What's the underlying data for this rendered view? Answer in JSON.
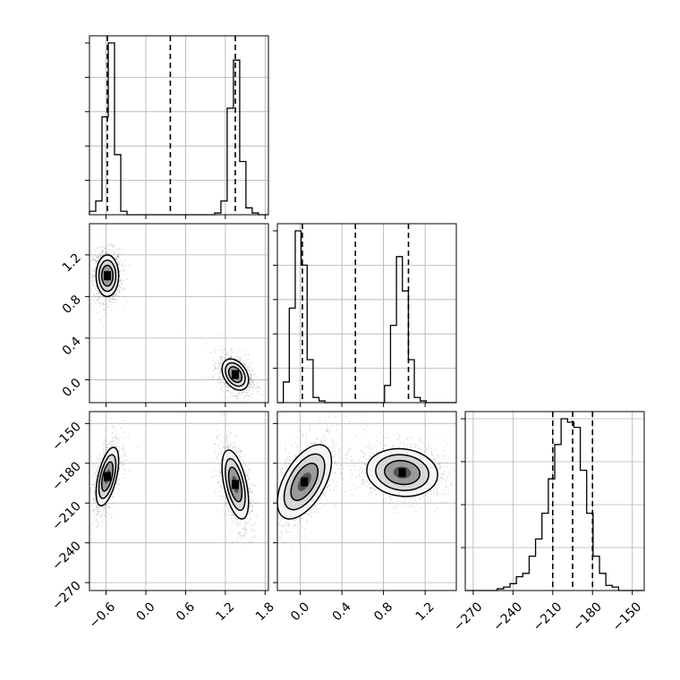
{
  "chart_data": {
    "type": "corner",
    "grid": true,
    "parameters": [
      {
        "ticks": [
          -0.6,
          0.0,
          0.6,
          1.2,
          1.8
        ],
        "tick_labels": [
          "−0.6",
          "0.0",
          "0.6",
          "1.2",
          "1.8"
        ],
        "range": [
          -0.85,
          1.85
        ]
      },
      {
        "ticks": [
          0.0,
          0.4,
          0.8,
          1.2
        ],
        "tick_labels": [
          "0.0",
          "0.4",
          "0.8",
          "1.2"
        ],
        "range": [
          -0.22,
          1.5
        ]
      },
      {
        "ticks": [
          -270,
          -240,
          -210,
          -180,
          -150
        ],
        "tick_labels": [
          "−270",
          "−240",
          "−210",
          "−180",
          "−150"
        ],
        "range": [
          -276,
          -141
        ]
      }
    ],
    "quantiles": [
      [
        -0.58,
        0.37,
        1.35
      ],
      [
        0.02,
        0.53,
        1.04
      ],
      [
        -210,
        -195,
        -180
      ]
    ],
    "histograms": [
      {
        "edges": [
          -0.85,
          -0.7556,
          -0.6611,
          -0.5667,
          -0.4722,
          -0.3778,
          -0.2833,
          -0.1889,
          -0.0944,
          0.0,
          0.0944,
          0.1889,
          0.2833,
          0.3778,
          0.4722,
          0.5667,
          0.6611,
          0.7556,
          0.85,
          0.9444,
          1.0389,
          1.1333,
          1.2278,
          1.3222,
          1.4167,
          1.5111,
          1.6056,
          1.7,
          1.85
        ],
        "counts": [
          0.02,
          0.08,
          0.57,
          1.0,
          0.35,
          0.02,
          0,
          0,
          0,
          0,
          0,
          0,
          0,
          0,
          0,
          0,
          0,
          0,
          0,
          0,
          0.01,
          0.08,
          0.62,
          0.9,
          0.31,
          0.04,
          0.01,
          0
        ]
      },
      {
        "edges": [
          -0.22,
          -0.1628,
          -0.1055,
          -0.0483,
          0.0089,
          0.0662,
          0.1234,
          0.1806,
          0.2379,
          0.2951,
          0.3523,
          0.4096,
          0.4668,
          0.524,
          0.5813,
          0.6385,
          0.6957,
          0.753,
          0.8102,
          0.8674,
          0.9247,
          0.9819,
          1.0391,
          1.0964,
          1.1536,
          1.2108,
          1.2681,
          1.3253,
          1.5
        ],
        "counts": [
          0,
          0.12,
          0.55,
          1.0,
          0.8,
          0.25,
          0.03,
          0.01,
          0,
          0,
          0,
          0,
          0,
          0,
          0,
          0,
          0,
          0,
          0.1,
          0.45,
          0.85,
          0.65,
          0.25,
          0.03,
          0.01,
          0,
          0,
          0
        ]
      },
      {
        "edges": [
          -276,
          -271.1786,
          -266.3571,
          -261.5357,
          -256.7143,
          -251.8929,
          -247.0714,
          -242.25,
          -237.4286,
          -232.6071,
          -227.7857,
          -222.9643,
          -218.1429,
          -213.3214,
          -208.5,
          -203.6786,
          -198.8571,
          -194.0357,
          -189.2143,
          -184.3929,
          -179.5714,
          -174.75,
          -169.9286,
          -165.1071,
          -160.2857,
          -155.4643,
          -150.6429,
          -145.8214,
          -141
        ],
        "counts": [
          0,
          0,
          0,
          0,
          0,
          0.01,
          0.02,
          0.04,
          0.08,
          0.1,
          0.2,
          0.3,
          0.45,
          0.65,
          0.85,
          1.0,
          0.98,
          0.95,
          0.7,
          0.45,
          0.2,
          0.1,
          0.03,
          0.02,
          0,
          0,
          0,
          0
        ]
      }
    ],
    "panels_2d": [
      {
        "x_param": 0,
        "y_param": 1,
        "modes": [
          {
            "mean": [
              -0.58,
              1.0
            ],
            "sd": [
              0.085,
              0.1
            ],
            "rho": 0.0
          },
          {
            "mean": [
              1.35,
              0.05
            ],
            "sd": [
              0.1,
              0.075
            ],
            "rho": -0.35
          }
        ]
      },
      {
        "x_param": 0,
        "y_param": 2,
        "modes": [
          {
            "mean": [
              -0.58,
              -190
            ],
            "sd": [
              0.085,
              11
            ],
            "rho": 0.55
          },
          {
            "mean": [
              1.35,
              -196
            ],
            "sd": [
              0.1,
              13
            ],
            "rho": -0.5
          }
        ]
      },
      {
        "x_param": 1,
        "y_param": 2,
        "modes": [
          {
            "mean": [
              0.04,
              -194
            ],
            "sd": [
              0.13,
              14
            ],
            "rho": 0.55
          },
          {
            "mean": [
              0.98,
              -187
            ],
            "sd": [
              0.17,
              9
            ],
            "rho": -0.1
          }
        ]
      }
    ]
  }
}
